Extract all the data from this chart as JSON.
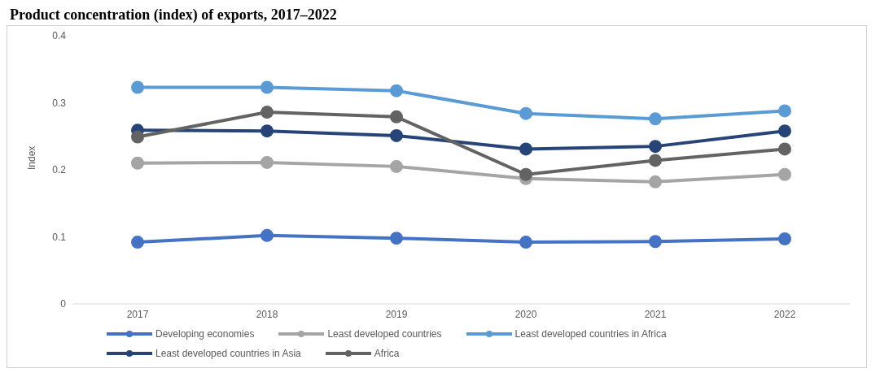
{
  "chart_data": {
    "type": "line",
    "title": "Product concentration (index) of exports, 2017–2022",
    "ylabel": "Index",
    "categories": [
      "2017",
      "2018",
      "2019",
      "2020",
      "2021",
      "2022"
    ],
    "series": [
      {
        "name": "Developing economies",
        "color": "#4472c4",
        "values": [
          0.092,
          0.102,
          0.098,
          0.092,
          0.093,
          0.097
        ]
      },
      {
        "name": "Least developed countries",
        "color": "#a5a5a5",
        "values": [
          0.21,
          0.211,
          0.205,
          0.187,
          0.182,
          0.193
        ]
      },
      {
        "name": "Least developed countries in Africa",
        "color": "#5b9bd5",
        "values": [
          0.323,
          0.323,
          0.318,
          0.284,
          0.276,
          0.288
        ]
      },
      {
        "name": "Least developed countries in Asia",
        "color": "#264478",
        "values": [
          0.259,
          0.258,
          0.251,
          0.231,
          0.235,
          0.258
        ]
      },
      {
        "name": "Africa",
        "color": "#636363",
        "values": [
          0.249,
          0.286,
          0.279,
          0.193,
          0.214,
          0.231
        ]
      }
    ],
    "ylim": [
      0,
      0.4
    ],
    "yticks": [
      0,
      0.1,
      0.2,
      0.3,
      0.4
    ],
    "grid": false,
    "legend": "bottom",
    "marker": "circle",
    "line_style": "solid"
  }
}
